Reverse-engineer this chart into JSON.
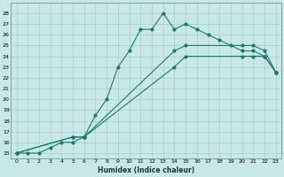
{
  "xlabel": "Humidex (Indice chaleur)",
  "bg_color": "#c8e8e8",
  "grid_color": "#aacccc",
  "line_color": "#1a7a6a",
  "xlim": [
    -0.5,
    23.5
  ],
  "ylim": [
    14.5,
    29
  ],
  "xticks": [
    0,
    1,
    2,
    3,
    4,
    5,
    6,
    7,
    8,
    9,
    10,
    11,
    12,
    13,
    14,
    15,
    16,
    17,
    18,
    19,
    20,
    21,
    22,
    23
  ],
  "yticks": [
    15,
    16,
    17,
    18,
    19,
    20,
    21,
    22,
    23,
    24,
    25,
    26,
    27,
    28
  ],
  "line1_x": [
    0,
    1,
    2,
    3,
    4,
    5,
    6,
    7,
    8,
    9,
    10,
    11,
    12,
    13,
    14,
    15,
    16,
    17,
    18,
    19,
    20,
    21,
    22,
    23
  ],
  "line1_y": [
    15,
    15,
    15,
    15.5,
    16,
    16,
    16.5,
    18.5,
    20,
    23,
    24.5,
    26.5,
    26.5,
    28,
    26.5,
    27,
    26.5,
    26,
    25.5,
    25,
    24.5,
    24.5,
    24,
    22.5
  ],
  "line2_x": [
    0,
    5,
    6,
    14,
    15,
    20,
    21,
    22,
    23
  ],
  "line2_y": [
    15,
    16.5,
    16.5,
    24.5,
    25,
    25,
    25,
    24.5,
    22.5
  ],
  "line3_x": [
    0,
    5,
    6,
    14,
    15,
    20,
    21,
    22,
    23
  ],
  "line3_y": [
    15,
    16.5,
    16.5,
    23,
    24,
    24,
    24,
    24,
    22.5
  ]
}
